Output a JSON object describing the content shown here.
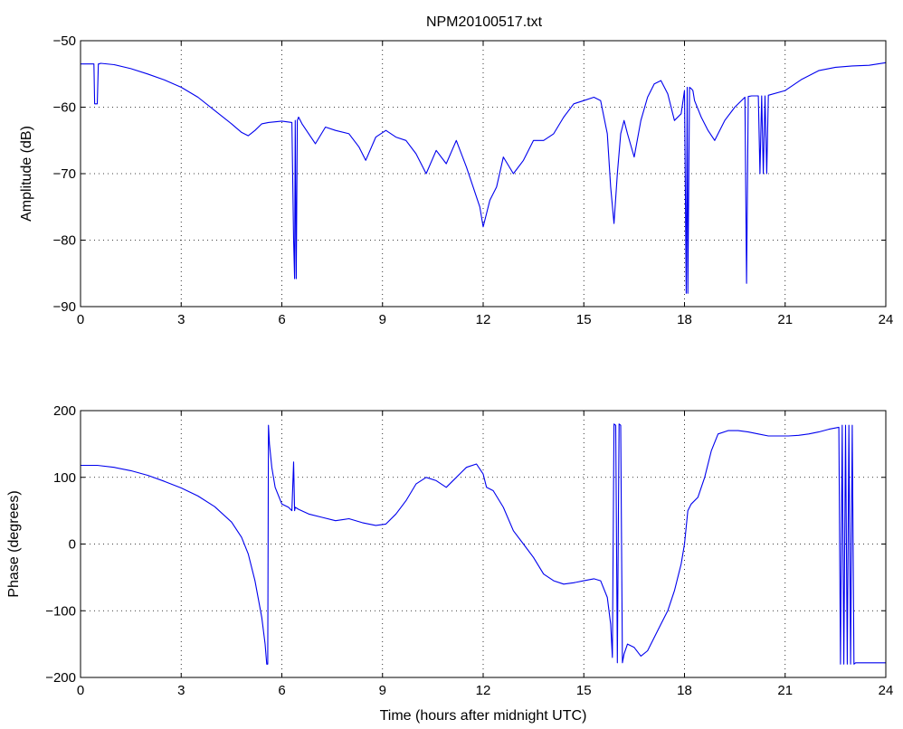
{
  "title": "NPM20100517.txt",
  "colors": {
    "line": "#0000ee",
    "axes": "#000000",
    "grid": "#000000",
    "background": "#ffffff"
  },
  "chart_data": [
    {
      "type": "line",
      "title": "NPM20100517.txt",
      "xlabel": "",
      "ylabel": "Amplitude (dB)",
      "xlim": [
        0,
        24
      ],
      "ylim": [
        -90,
        -50
      ],
      "xticks": [
        "0",
        "3",
        "6",
        "9",
        "12",
        "15",
        "18",
        "21",
        "24"
      ],
      "yticks": [
        "-90",
        "-80",
        "-70",
        "-60",
        "-50"
      ],
      "grid": true,
      "series": [
        {
          "name": "",
          "x": [
            0,
            0.3,
            0.4,
            0.42,
            0.45,
            0.48,
            0.5,
            0.53,
            0.55,
            0.6,
            1.0,
            1.5,
            2.0,
            2.5,
            3.0,
            3.5,
            4.0,
            4.5,
            4.8,
            5.0,
            5.2,
            5.4,
            5.6,
            6.0,
            6.3,
            6.35,
            6.38,
            6.4,
            6.43,
            6.46,
            6.5,
            6.6,
            6.8,
            7.0,
            7.3,
            7.6,
            8.0,
            8.3,
            8.5,
            8.8,
            9.1,
            9.4,
            9.7,
            10.0,
            10.3,
            10.6,
            10.9,
            11.2,
            11.5,
            11.7,
            11.9,
            12.0,
            12.1,
            12.2,
            12.4,
            12.6,
            12.9,
            13.2,
            13.5,
            13.8,
            14.1,
            14.4,
            14.7,
            15.0,
            15.3,
            15.5,
            15.7,
            15.8,
            15.9,
            16.0,
            16.1,
            16.2,
            16.3,
            16.5,
            16.7,
            16.9,
            17.1,
            17.3,
            17.5,
            17.7,
            17.9,
            18.0,
            18.05,
            18.08,
            18.1,
            18.15,
            18.2,
            18.25,
            18.3,
            18.5,
            18.7,
            18.9,
            19.2,
            19.5,
            19.8,
            19.85,
            19.9,
            20.0,
            20.2,
            20.25,
            20.3,
            20.35,
            20.4,
            20.45,
            20.5,
            21.0,
            21.5,
            22.0,
            22.5,
            23.0,
            23.5,
            24.0
          ],
          "y": [
            -53.5,
            -53.5,
            -53.5,
            -59.5,
            -59.5,
            -59.5,
            -59.5,
            -53.5,
            -53.5,
            -53.4,
            -53.6,
            -54.2,
            -55.0,
            -55.9,
            -57.0,
            -58.5,
            -60.5,
            -62.5,
            -63.8,
            -64.3,
            -63.5,
            -62.5,
            -62.3,
            -62.1,
            -62.3,
            -80.0,
            -85.8,
            -62.0,
            -85.8,
            -62.0,
            -61.5,
            -62.5,
            -64.0,
            -65.5,
            -63.0,
            -63.5,
            -64.0,
            -66.0,
            -68.0,
            -64.5,
            -63.5,
            -64.5,
            -65.0,
            -67.0,
            -70.0,
            -66.5,
            -68.5,
            -65.0,
            -69.0,
            -72.0,
            -75.0,
            -78.0,
            -76.0,
            -74.0,
            -72.0,
            -67.5,
            -70.0,
            -68.0,
            -65.0,
            -65.0,
            -64.0,
            -61.5,
            -59.5,
            -59.0,
            -58.5,
            -59.0,
            -64.0,
            -72.0,
            -77.5,
            -70.0,
            -64.0,
            -62.0,
            -64.0,
            -67.5,
            -62.0,
            -58.5,
            -56.5,
            -56.0,
            -58.0,
            -62.0,
            -61.0,
            -57.5,
            -88.0,
            -57.0,
            -88.0,
            -57.0,
            -57.2,
            -57.5,
            -59.0,
            -61.5,
            -63.5,
            -65.0,
            -62.0,
            -60.0,
            -58.5,
            -86.5,
            -58.4,
            -58.3,
            -58.3,
            -70.0,
            -58.3,
            -70.0,
            -58.3,
            -70.0,
            -58.2,
            -57.5,
            -55.8,
            -54.5,
            -54.0,
            -53.8,
            -53.7,
            -53.3
          ]
        }
      ]
    },
    {
      "type": "line",
      "title": "",
      "xlabel": "Time (hours after midnight UTC)",
      "ylabel": "Phase (degrees)",
      "xlim": [
        0,
        24
      ],
      "ylim": [
        -200,
        200
      ],
      "xticks": [
        "0",
        "3",
        "6",
        "9",
        "12",
        "15",
        "18",
        "21",
        "24"
      ],
      "yticks": [
        "-200",
        "-100",
        "0",
        "100",
        "200"
      ],
      "grid": true,
      "series": [
        {
          "name": "",
          "x": [
            0,
            0.5,
            1.0,
            1.5,
            2.0,
            2.5,
            3.0,
            3.5,
            4.0,
            4.5,
            4.8,
            5.0,
            5.2,
            5.4,
            5.5,
            5.55,
            5.58,
            5.6,
            5.63,
            5.7,
            5.8,
            6.0,
            6.2,
            6.3,
            6.35,
            6.38,
            6.4,
            6.5,
            6.8,
            7.2,
            7.6,
            8.0,
            8.4,
            8.8,
            9.1,
            9.4,
            9.7,
            10.0,
            10.3,
            10.6,
            10.9,
            11.2,
            11.5,
            11.8,
            12.0,
            12.1,
            12.3,
            12.6,
            12.9,
            13.2,
            13.5,
            13.8,
            14.1,
            14.4,
            14.7,
            15.0,
            15.3,
            15.5,
            15.7,
            15.8,
            15.85,
            15.9,
            15.95,
            16.0,
            16.05,
            16.1,
            16.15,
            16.2,
            16.3,
            16.5,
            16.7,
            16.9,
            17.1,
            17.3,
            17.5,
            17.7,
            17.9,
            18.0,
            18.1,
            18.2,
            18.4,
            18.6,
            18.8,
            19.0,
            19.3,
            19.6,
            19.9,
            20.2,
            20.5,
            20.8,
            21.1,
            21.4,
            21.7,
            22.0,
            22.3,
            22.6,
            22.65,
            22.7,
            22.75,
            22.8,
            22.85,
            22.9,
            22.95,
            23.0,
            23.05,
            23.1,
            23.5,
            24.0
          ],
          "y": [
            118,
            118,
            115,
            110,
            103,
            94,
            84,
            72,
            56,
            33,
            10,
            -15,
            -55,
            -110,
            -150,
            -180,
            -180,
            178,
            150,
            115,
            85,
            60,
            55,
            50,
            123,
            50,
            55,
            52,
            45,
            40,
            35,
            38,
            32,
            28,
            30,
            45,
            65,
            90,
            100,
            95,
            85,
            100,
            115,
            120,
            105,
            85,
            80,
            55,
            20,
            0,
            -20,
            -45,
            -55,
            -60,
            -58,
            -55,
            -52,
            -55,
            -80,
            -120,
            -170,
            180,
            178,
            -178,
            180,
            178,
            -178,
            -165,
            -150,
            -155,
            -168,
            -160,
            -140,
            -120,
            -100,
            -70,
            -30,
            0,
            50,
            60,
            70,
            100,
            140,
            165,
            170,
            170,
            168,
            165,
            162,
            162,
            162,
            163,
            165,
            168,
            172,
            175,
            -180,
            178,
            -180,
            178,
            -180,
            178,
            -180,
            178,
            -180,
            -178,
            -178,
            -178
          ]
        }
      ]
    }
  ]
}
